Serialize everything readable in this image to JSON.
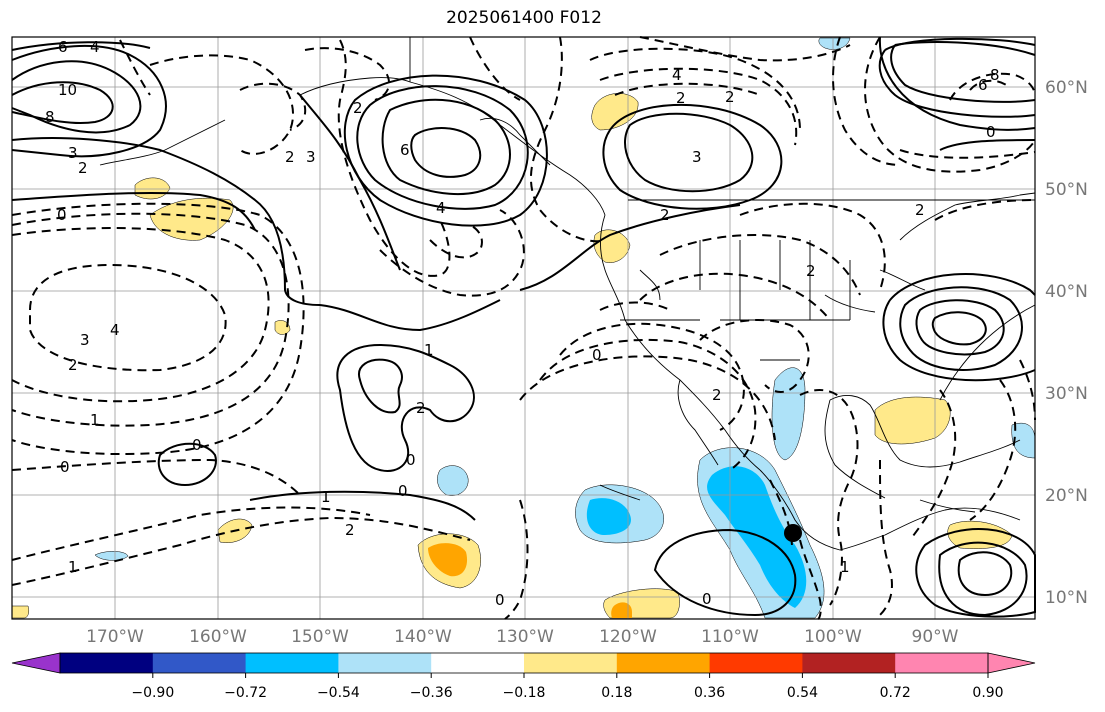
{
  "title": "2025061400 F012",
  "map": {
    "projection": "PlateCarree",
    "extent": {
      "lon": [
        -180,
        -80
      ],
      "lat": [
        8,
        65
      ]
    },
    "lon_labels": [
      "170°W",
      "160°W",
      "150°W",
      "140°W",
      "130°W",
      "120°W",
      "110°W",
      "100°W",
      "90°W"
    ],
    "lat_labels": [
      "60°N",
      "50°N",
      "40°N",
      "30°N",
      "20°N",
      "10°N"
    ],
    "marker": {
      "label": "storm-center",
      "lon": -104,
      "lat": 16.2,
      "color": "#000000"
    }
  },
  "contours": {
    "solid_labels": [
      "6",
      "4",
      "10",
      "8",
      "3",
      "2",
      "0",
      "6",
      "4",
      "2",
      "3",
      "2",
      "1",
      "2",
      "0",
      "0",
      "1",
      "0",
      "6",
      "8",
      "0"
    ],
    "dashed_labels": [
      "2",
      "4",
      "3",
      "2",
      "1",
      "0",
      "1",
      "2",
      "3",
      "2",
      "0",
      "2",
      "2",
      "0",
      "2",
      "1",
      "0",
      "4",
      "2"
    ]
  },
  "colorbar": {
    "ticks": [
      "−0.90",
      "−0.72",
      "−0.54",
      "−0.36",
      "−0.18",
      "0.18",
      "0.36",
      "0.54",
      "0.72",
      "0.90"
    ],
    "colors": [
      "#9933cc",
      "#000080",
      "#3158c8",
      "#00bfff",
      "#aee2f8",
      "#ffffff",
      "#ffe98a",
      "#ffa500",
      "#ff3a00",
      "#b22222",
      "#ff85b0",
      "#ff85b0"
    ]
  },
  "shading_colors": {
    "neg_light": "#aee2f8",
    "neg_mid": "#00bfff",
    "pos_light": "#ffe98a",
    "pos_mid": "#ffa500"
  }
}
